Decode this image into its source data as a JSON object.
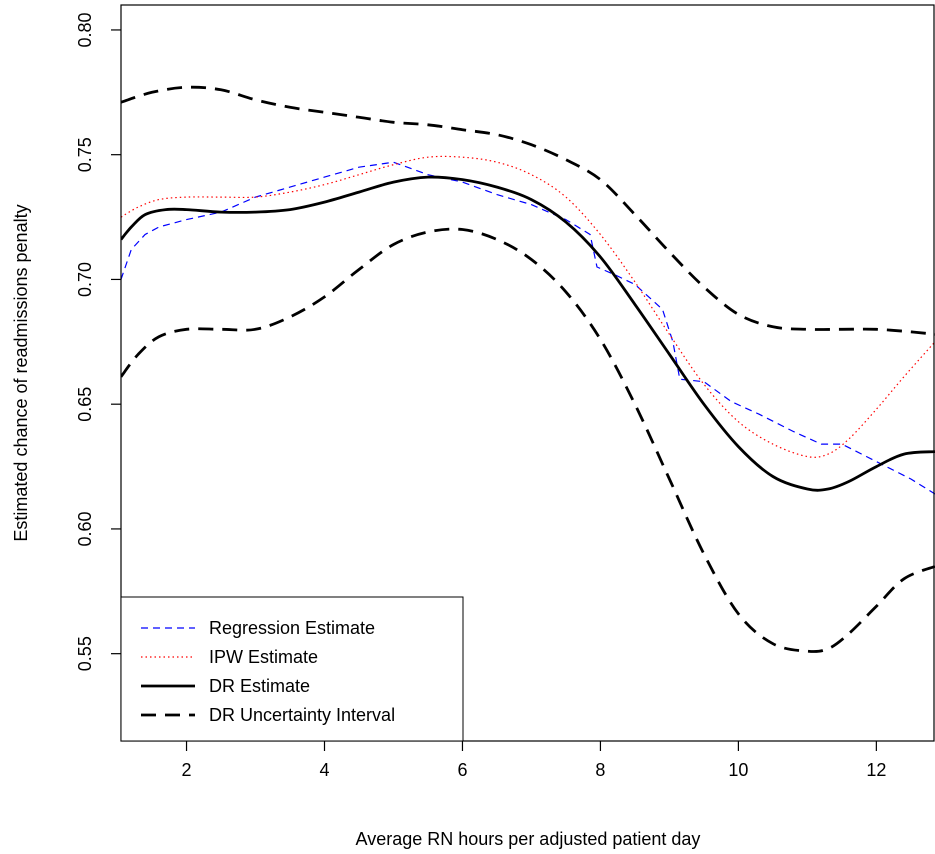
{
  "chart_data": {
    "type": "line",
    "title": "",
    "xlabel": "Average RN hours per adjusted patient day",
    "ylabel": "Estimated chance of readmissions penalty",
    "xlim": [
      1.05,
      12.85
    ],
    "ylim": [
      0.515,
      0.81
    ],
    "xticks": [
      2,
      4,
      6,
      8,
      10,
      12
    ],
    "yticks": [
      0.55,
      0.6,
      0.65,
      0.7,
      0.75,
      0.8
    ],
    "xtick_labels": [
      "2",
      "4",
      "6",
      "8",
      "10",
      "12"
    ],
    "ytick_labels": [
      "0.55",
      "0.60",
      "0.65",
      "0.70",
      "0.75",
      "0.80"
    ],
    "legend_position": "bottom-left",
    "series": [
      {
        "name": "Regression Estimate",
        "color": "#0000ff",
        "style": "dashed",
        "points": [
          [
            1.05,
            0.7
          ],
          [
            1.2,
            0.712
          ],
          [
            1.4,
            0.718
          ],
          [
            1.6,
            0.721
          ],
          [
            2.0,
            0.724
          ],
          [
            2.5,
            0.727
          ],
          [
            3.0,
            0.733
          ],
          [
            3.5,
            0.737
          ],
          [
            4.0,
            0.741
          ],
          [
            4.5,
            0.745
          ],
          [
            5.0,
            0.747
          ],
          [
            5.5,
            0.742
          ],
          [
            6.0,
            0.739
          ],
          [
            6.5,
            0.734
          ],
          [
            7.0,
            0.73
          ],
          [
            7.5,
            0.724
          ],
          [
            7.85,
            0.718
          ],
          [
            7.95,
            0.705
          ],
          [
            8.2,
            0.702
          ],
          [
            8.5,
            0.698
          ],
          [
            8.9,
            0.688
          ],
          [
            9.05,
            0.675
          ],
          [
            9.15,
            0.66
          ],
          [
            9.5,
            0.659
          ],
          [
            9.9,
            0.651
          ],
          [
            10.3,
            0.646
          ],
          [
            10.8,
            0.639
          ],
          [
            11.2,
            0.634
          ],
          [
            11.5,
            0.634
          ],
          [
            12.0,
            0.627
          ],
          [
            12.5,
            0.62
          ],
          [
            12.85,
            0.614
          ]
        ]
      },
      {
        "name": "IPW Estimate",
        "color": "#ff0000",
        "style": "dotted",
        "points": [
          [
            1.05,
            0.725
          ],
          [
            1.3,
            0.729
          ],
          [
            1.6,
            0.732
          ],
          [
            2.0,
            0.733
          ],
          [
            2.5,
            0.733
          ],
          [
            3.0,
            0.733
          ],
          [
            3.5,
            0.735
          ],
          [
            4.0,
            0.738
          ],
          [
            4.5,
            0.742
          ],
          [
            5.0,
            0.746
          ],
          [
            5.5,
            0.749
          ],
          [
            6.0,
            0.749
          ],
          [
            6.5,
            0.747
          ],
          [
            7.0,
            0.742
          ],
          [
            7.5,
            0.733
          ],
          [
            8.0,
            0.718
          ],
          [
            8.5,
            0.699
          ],
          [
            9.0,
            0.678
          ],
          [
            9.5,
            0.658
          ],
          [
            10.0,
            0.643
          ],
          [
            10.5,
            0.634
          ],
          [
            11.0,
            0.629
          ],
          [
            11.3,
            0.63
          ],
          [
            11.6,
            0.636
          ],
          [
            12.0,
            0.648
          ],
          [
            12.4,
            0.661
          ],
          [
            12.85,
            0.675
          ]
        ]
      },
      {
        "name": "DR Estimate",
        "color": "#000000",
        "style": "solid",
        "points": [
          [
            1.05,
            0.716
          ],
          [
            1.2,
            0.721
          ],
          [
            1.4,
            0.726
          ],
          [
            1.7,
            0.728
          ],
          [
            2.0,
            0.728
          ],
          [
            2.5,
            0.727
          ],
          [
            3.0,
            0.727
          ],
          [
            3.5,
            0.728
          ],
          [
            4.0,
            0.731
          ],
          [
            4.5,
            0.735
          ],
          [
            5.0,
            0.739
          ],
          [
            5.5,
            0.741
          ],
          [
            6.0,
            0.74
          ],
          [
            6.5,
            0.737
          ],
          [
            7.0,
            0.732
          ],
          [
            7.5,
            0.723
          ],
          [
            8.0,
            0.709
          ],
          [
            8.5,
            0.69
          ],
          [
            9.0,
            0.67
          ],
          [
            9.5,
            0.65
          ],
          [
            10.0,
            0.633
          ],
          [
            10.5,
            0.621
          ],
          [
            11.0,
            0.616
          ],
          [
            11.3,
            0.616
          ],
          [
            11.6,
            0.619
          ],
          [
            12.0,
            0.625
          ],
          [
            12.4,
            0.63
          ],
          [
            12.85,
            0.631
          ]
        ]
      },
      {
        "name": "DR Uncertainty Interval",
        "color": "#000000",
        "style": "dashed-thick",
        "points": [
          [
            1.05,
            0.771
          ],
          [
            1.5,
            0.775
          ],
          [
            2.0,
            0.777
          ],
          [
            2.5,
            0.776
          ],
          [
            3.0,
            0.772
          ],
          [
            3.5,
            0.769
          ],
          [
            4.0,
            0.767
          ],
          [
            4.5,
            0.765
          ],
          [
            5.0,
            0.763
          ],
          [
            5.5,
            0.762
          ],
          [
            6.0,
            0.76
          ],
          [
            6.5,
            0.758
          ],
          [
            7.0,
            0.754
          ],
          [
            7.5,
            0.748
          ],
          [
            8.0,
            0.74
          ],
          [
            8.5,
            0.726
          ],
          [
            9.0,
            0.711
          ],
          [
            9.5,
            0.697
          ],
          [
            10.0,
            0.686
          ],
          [
            10.5,
            0.681
          ],
          [
            11.0,
            0.68
          ],
          [
            11.5,
            0.68
          ],
          [
            12.0,
            0.68
          ],
          [
            12.5,
            0.679
          ],
          [
            12.85,
            0.678
          ]
        ]
      },
      {
        "name": "",
        "color": "#000000",
        "style": "dashed-thick",
        "points": [
          [
            1.05,
            0.661
          ],
          [
            1.3,
            0.67
          ],
          [
            1.6,
            0.677
          ],
          [
            2.0,
            0.68
          ],
          [
            2.5,
            0.68
          ],
          [
            3.0,
            0.68
          ],
          [
            3.5,
            0.685
          ],
          [
            4.0,
            0.693
          ],
          [
            4.5,
            0.704
          ],
          [
            5.0,
            0.714
          ],
          [
            5.5,
            0.719
          ],
          [
            6.0,
            0.72
          ],
          [
            6.5,
            0.716
          ],
          [
            7.0,
            0.708
          ],
          [
            7.5,
            0.695
          ],
          [
            8.0,
            0.676
          ],
          [
            8.5,
            0.65
          ],
          [
            9.0,
            0.62
          ],
          [
            9.5,
            0.59
          ],
          [
            10.0,
            0.566
          ],
          [
            10.5,
            0.554
          ],
          [
            11.0,
            0.551
          ],
          [
            11.3,
            0.552
          ],
          [
            11.6,
            0.558
          ],
          [
            12.0,
            0.569
          ],
          [
            12.4,
            0.58
          ],
          [
            12.85,
            0.585
          ]
        ]
      }
    ],
    "legend": [
      {
        "label": "Regression Estimate",
        "color": "#0000ff",
        "style": "dashed"
      },
      {
        "label": "IPW Estimate",
        "color": "#ff0000",
        "style": "dotted"
      },
      {
        "label": "DR Estimate",
        "color": "#000000",
        "style": "solid"
      },
      {
        "label": "DR Uncertainty Interval",
        "color": "#000000",
        "style": "dashed-thick"
      }
    ]
  }
}
